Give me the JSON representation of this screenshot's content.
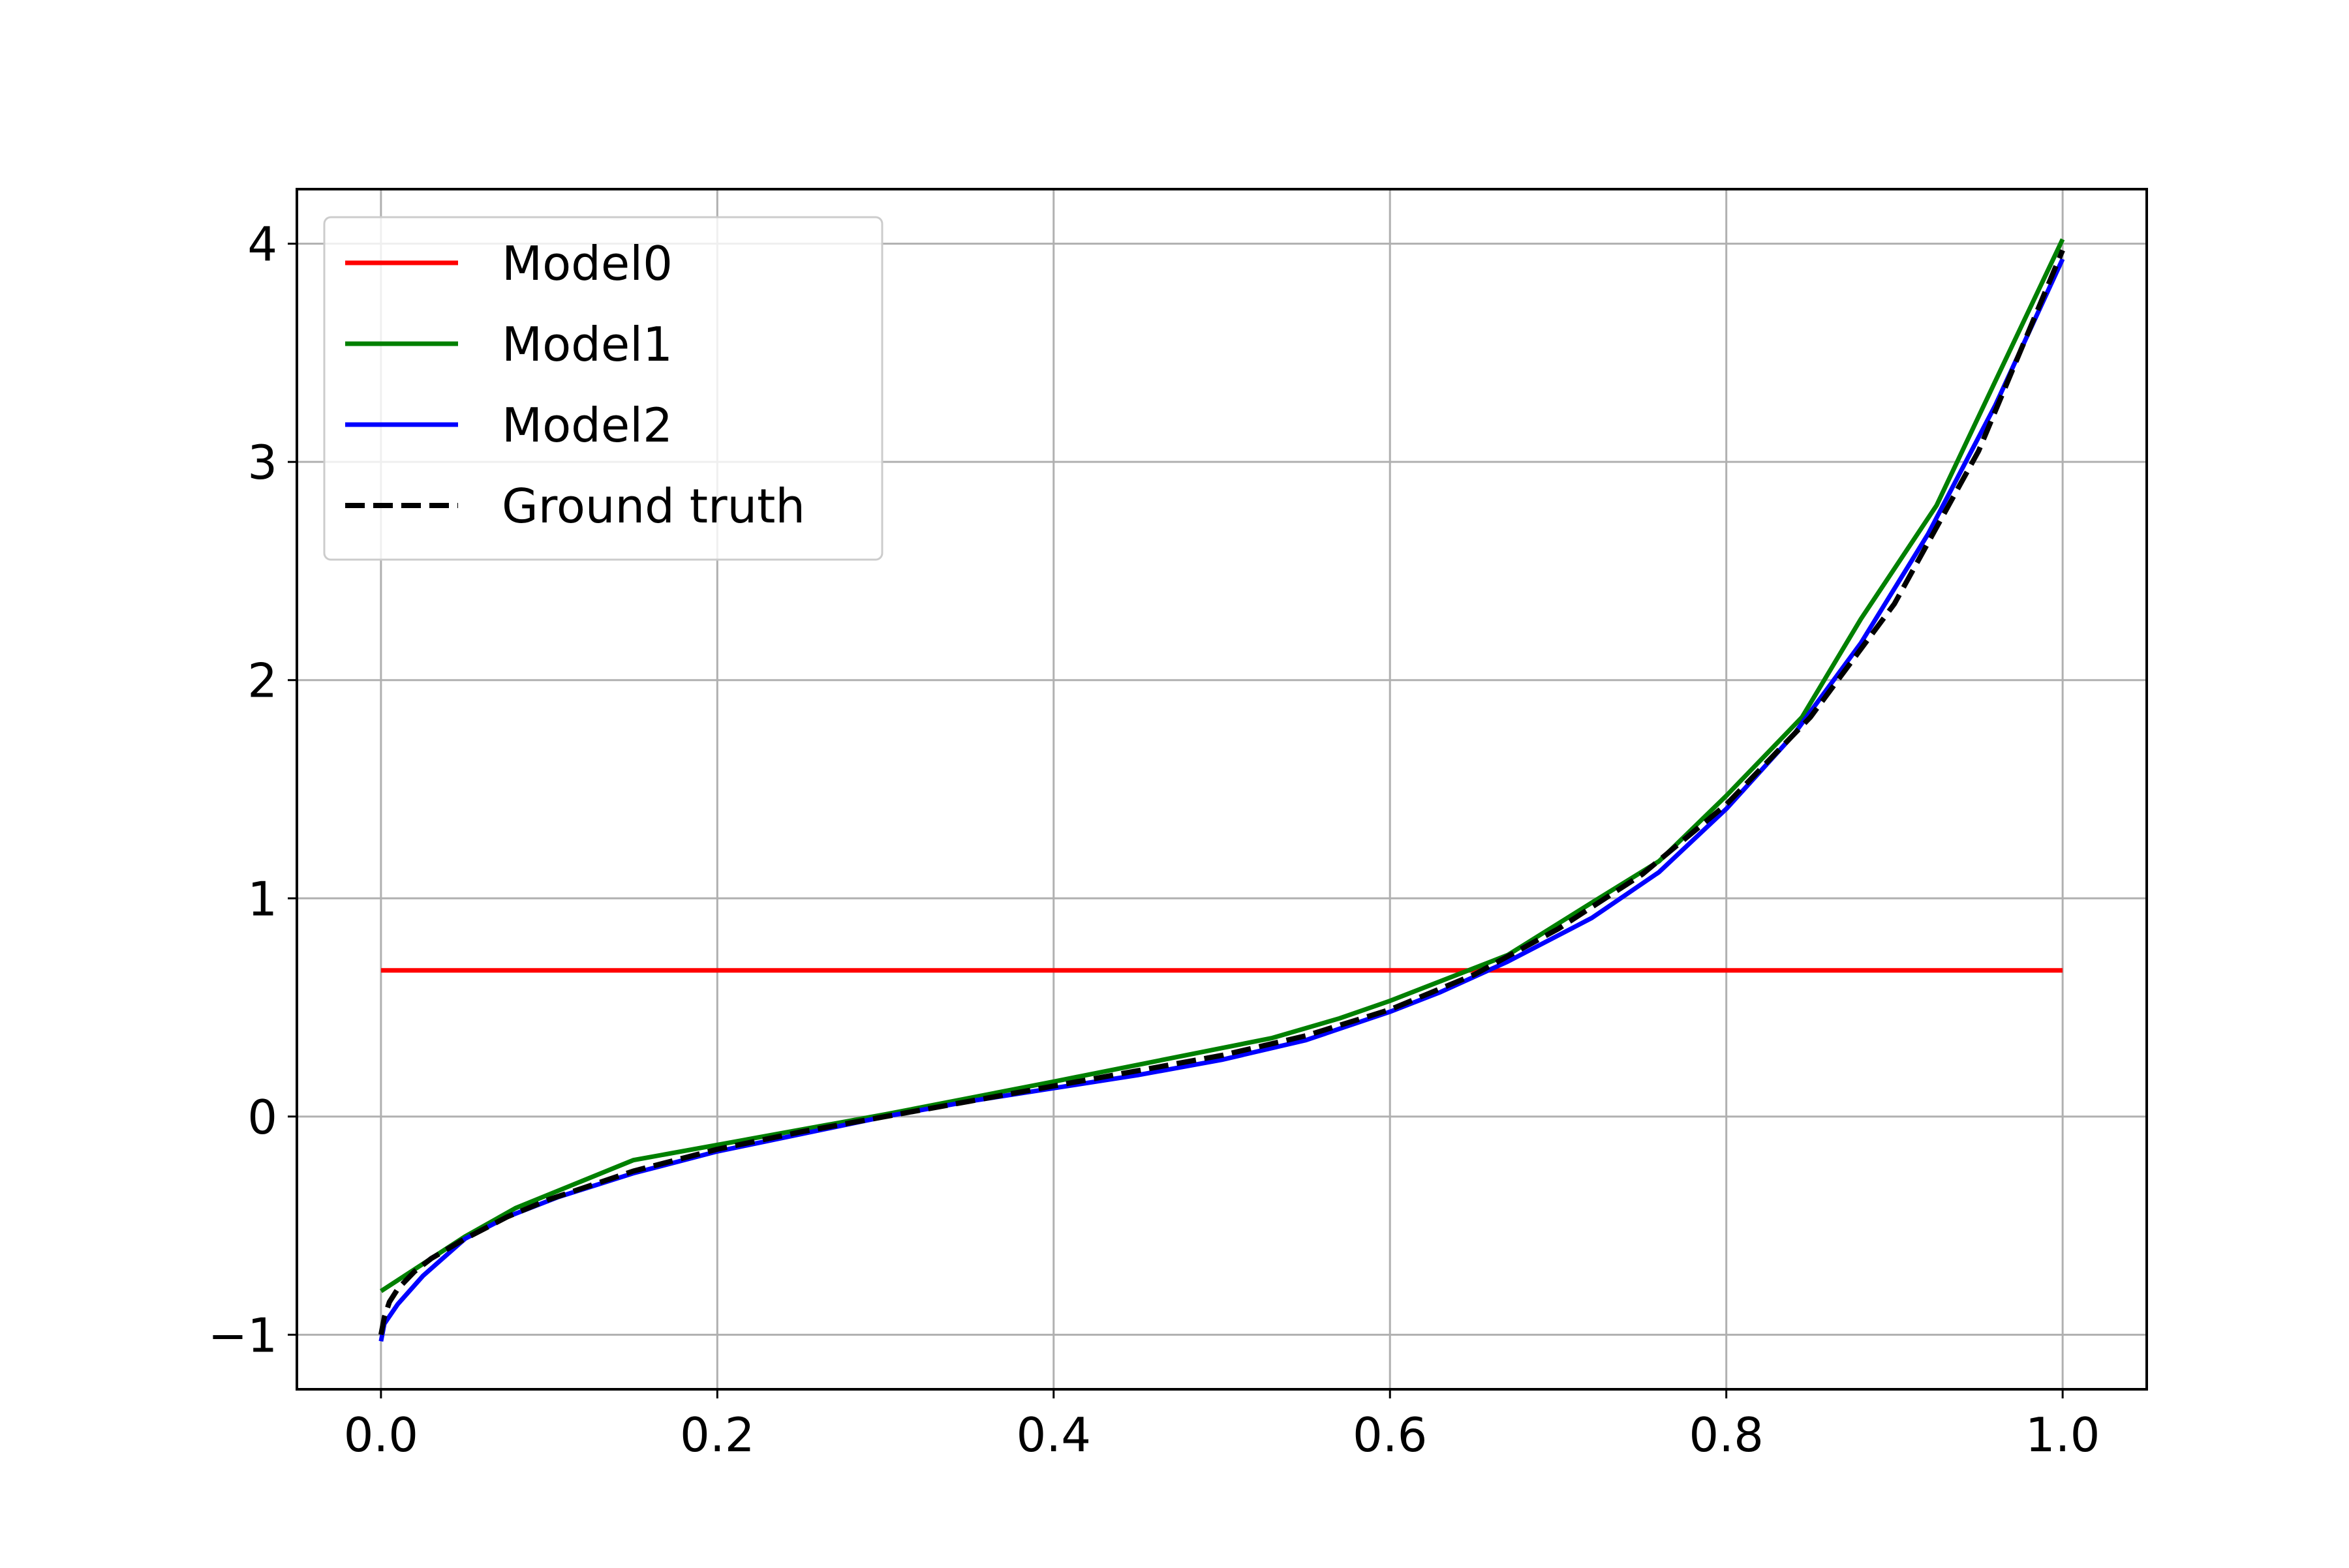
{
  "chart_data": {
    "type": "line",
    "title": "",
    "xlabel": "",
    "ylabel": "",
    "xlim": [
      -0.05,
      1.05
    ],
    "ylim": [
      -1.25,
      4.25
    ],
    "x_ticks": [
      0.0,
      0.2,
      0.4,
      0.6,
      0.8,
      1.0
    ],
    "x_tick_labels": [
      "0.0",
      "0.2",
      "0.4",
      "0.6",
      "0.8",
      "1.0"
    ],
    "y_ticks": [
      -1,
      0,
      1,
      2,
      3,
      4
    ],
    "y_tick_labels": [
      "−1",
      "0",
      "1",
      "2",
      "3",
      "4"
    ],
    "grid": true,
    "legend": {
      "position": "upper left",
      "entries": [
        "Model0",
        "Model1",
        "Model2",
        "Ground truth"
      ]
    },
    "series": [
      {
        "name": "Model0",
        "color": "#ff0000",
        "style": "solid",
        "x": [
          0.0,
          1.0
        ],
        "y": [
          0.67,
          0.67
        ]
      },
      {
        "name": "Model1",
        "color": "#008000",
        "style": "solid",
        "x": [
          0.0,
          0.05,
          0.08,
          0.15,
          0.2,
          0.3,
          0.4,
          0.53,
          0.57,
          0.6,
          0.67,
          0.72,
          0.76,
          0.8,
          0.845,
          0.88,
          0.925,
          0.96,
          1.0
        ],
        "y": [
          -0.8,
          -0.55,
          -0.42,
          -0.2,
          -0.13,
          0.01,
          0.16,
          0.36,
          0.45,
          0.53,
          0.74,
          0.98,
          1.17,
          1.47,
          1.83,
          2.28,
          2.8,
          3.37,
          4.02
        ]
      },
      {
        "name": "Model2",
        "color": "#0000ff",
        "style": "solid",
        "x": [
          0.0,
          0.002,
          0.01,
          0.025,
          0.05,
          0.075,
          0.105,
          0.15,
          0.2,
          0.25,
          0.3,
          0.35,
          0.4,
          0.45,
          0.5,
          0.55,
          0.6,
          0.63,
          0.67,
          0.72,
          0.76,
          0.8,
          0.84,
          0.88,
          0.92,
          0.96,
          1.0
        ],
        "y": [
          -1.03,
          -0.95,
          -0.86,
          -0.73,
          -0.56,
          -0.46,
          -0.37,
          -0.26,
          -0.16,
          -0.08,
          0.0,
          0.07,
          0.13,
          0.19,
          0.26,
          0.35,
          0.48,
          0.57,
          0.71,
          0.91,
          1.12,
          1.41,
          1.75,
          2.17,
          2.67,
          3.26,
          3.93
        ]
      },
      {
        "name": "Ground truth",
        "color": "#000000",
        "style": "dashed",
        "x": [
          0.0,
          0.002,
          0.005,
          0.01,
          0.02,
          0.03,
          0.05,
          0.075,
          0.1,
          0.15,
          0.2,
          0.25,
          0.3,
          0.35,
          0.4,
          0.45,
          0.5,
          0.55,
          0.6,
          0.65,
          0.7,
          0.75,
          0.8,
          0.85,
          0.9,
          0.95,
          1.0
        ],
        "y": [
          -1.0,
          -0.92,
          -0.85,
          -0.79,
          -0.71,
          -0.65,
          -0.56,
          -0.46,
          -0.38,
          -0.25,
          -0.15,
          -0.07,
          0.0,
          0.07,
          0.14,
          0.21,
          0.28,
          0.37,
          0.49,
          0.65,
          0.86,
          1.11,
          1.43,
          1.83,
          2.35,
          3.05,
          3.97
        ]
      }
    ]
  }
}
